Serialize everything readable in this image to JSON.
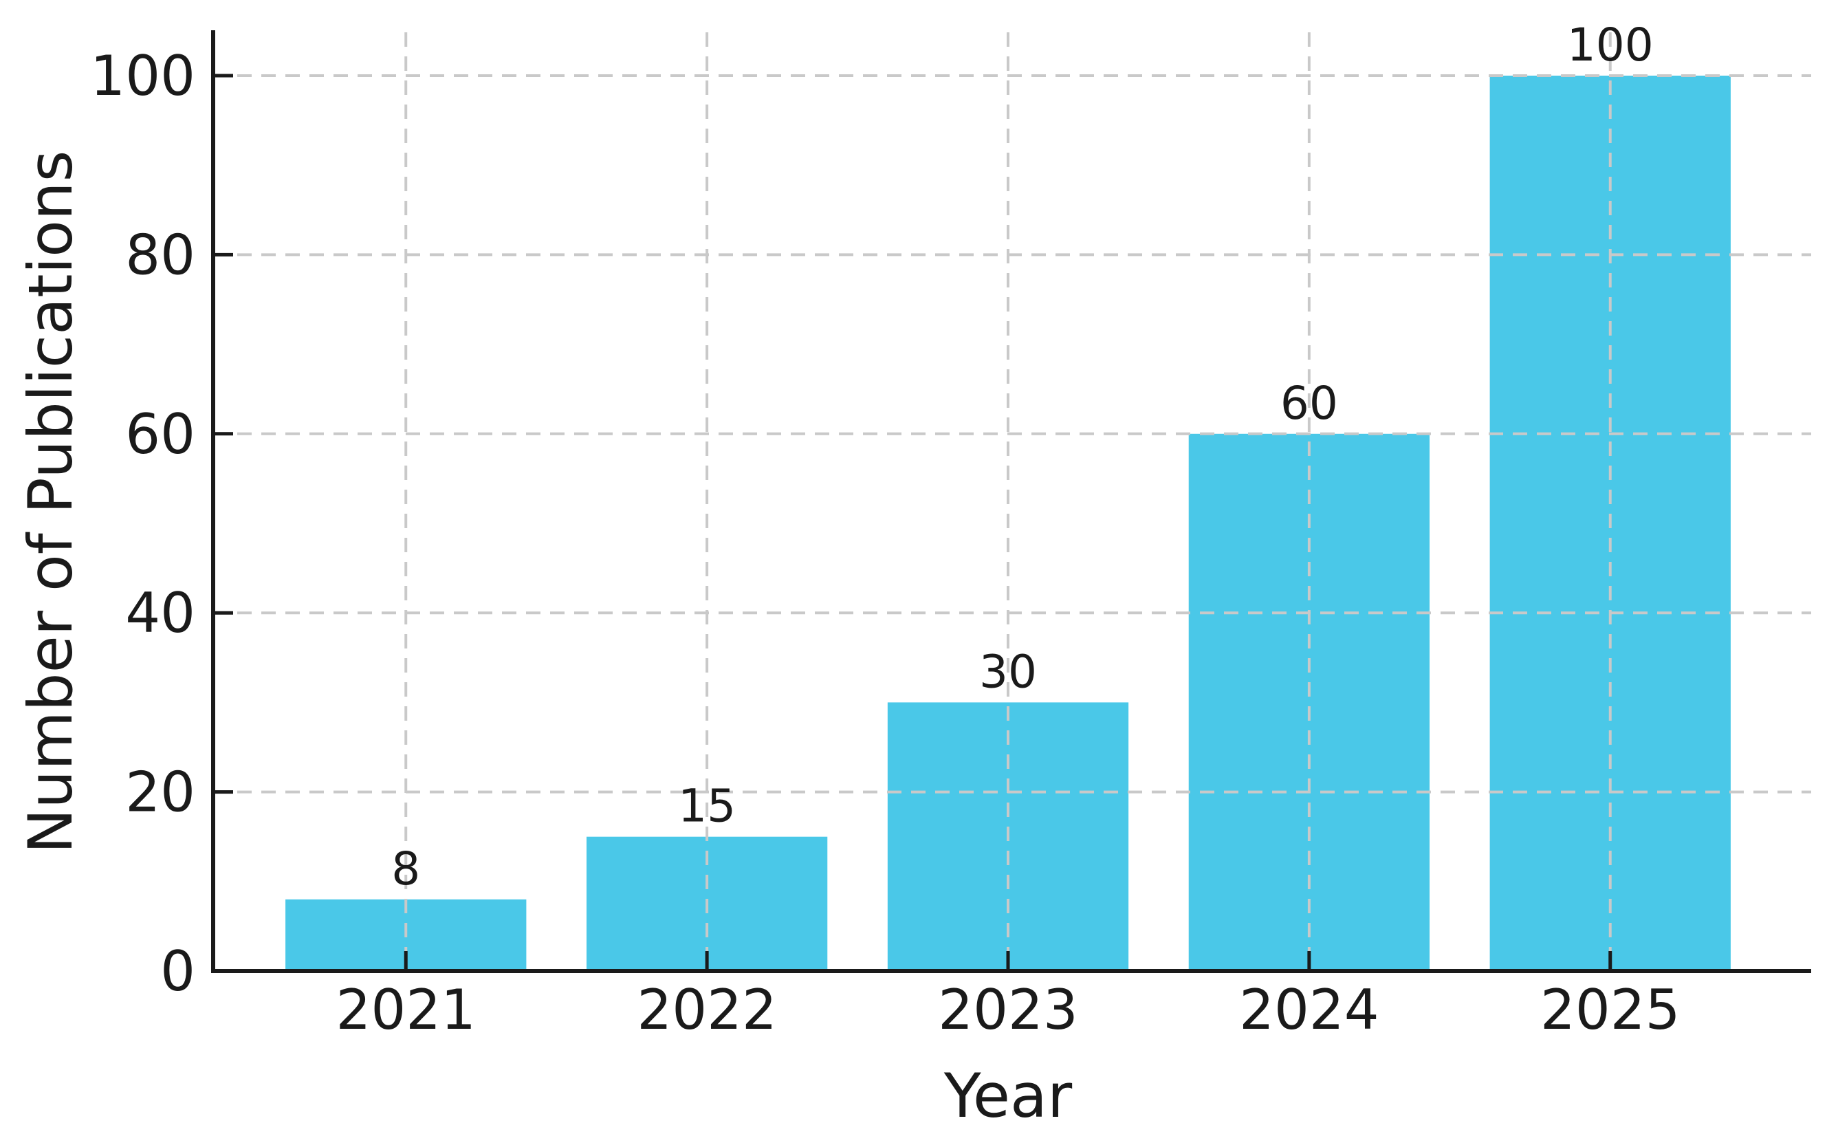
{
  "chart_data": {
    "type": "bar",
    "categories": [
      "2021",
      "2022",
      "2023",
      "2024",
      "2025"
    ],
    "values": [
      8,
      15,
      30,
      60,
      100
    ],
    "title": "",
    "xlabel": "Year",
    "ylabel": "Number of Publications",
    "yticks": [
      0,
      20,
      40,
      60,
      80,
      100
    ],
    "ylim": [
      0,
      105
    ],
    "grid": "dashed-both-axes-on-top-of-bars",
    "legend_position": "none",
    "bar_color": "#4AC8E8",
    "grid_color": "#c9c9c9",
    "axis_color": "#1a1a1a",
    "value_label_color": "#2a2a2a"
  }
}
